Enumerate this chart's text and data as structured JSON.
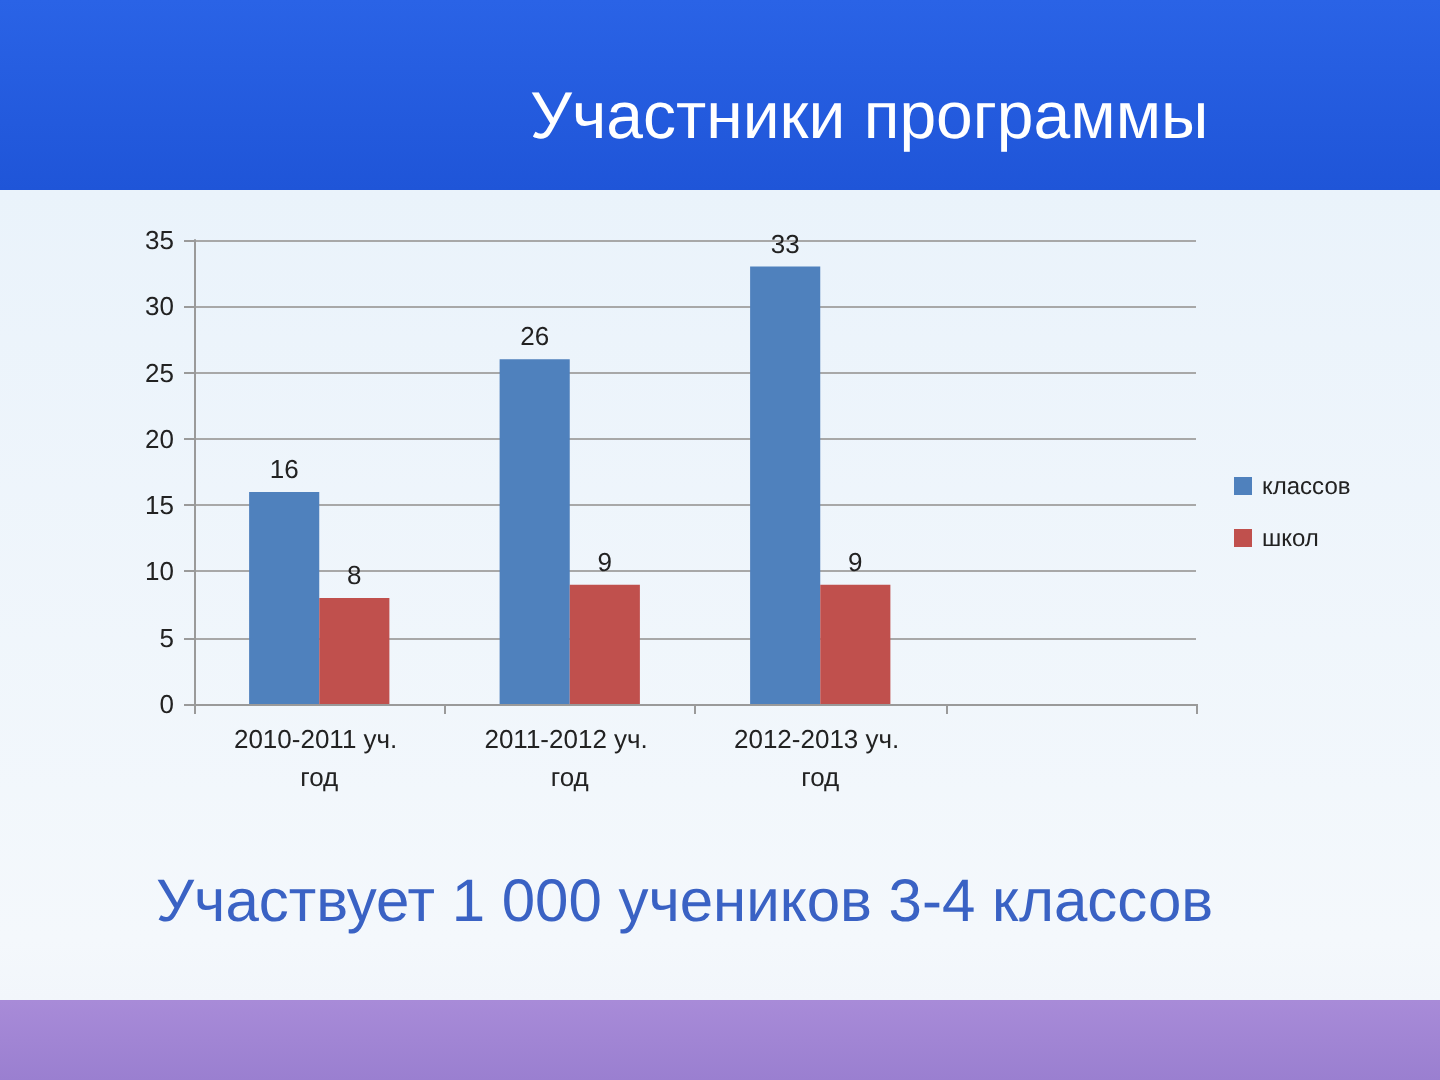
{
  "chart_data": {
    "type": "bar",
    "title": "Участники программы",
    "categories": [
      "2010-2011 уч. год",
      "2011-2012 уч. год",
      "2012-2013 уч. год",
      null
    ],
    "series": [
      {
        "name": "классов",
        "color": "#4f81bd",
        "values": [
          16,
          26,
          33,
          null
        ]
      },
      {
        "name": "школ",
        "color": "#c0504d",
        "values": [
          8,
          9,
          9,
          null
        ]
      }
    ],
    "ylim": [
      0,
      35
    ],
    "yticks": [
      0,
      5,
      10,
      15,
      20,
      25,
      30,
      35
    ],
    "grid": "y",
    "legend": "right",
    "data_labels": true,
    "annotations": [
      "Участвует 1 000 учеников 3-4 классов"
    ]
  }
}
